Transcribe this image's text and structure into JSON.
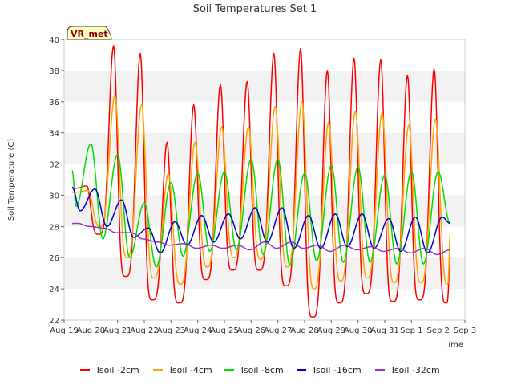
{
  "chart_data": {
    "type": "line",
    "title": "Soil Temperatures Set 1",
    "xlabel": "Time",
    "ylabel": "Soil Temperature (C)",
    "badge": "VR_met",
    "ylim": [
      22,
      40
    ],
    "y_ticks": [
      22,
      24,
      26,
      28,
      30,
      32,
      34,
      36,
      38,
      40
    ],
    "x_ticks": [
      "Aug 19",
      "Aug 20",
      "Aug 21",
      "Aug 22",
      "Aug 23",
      "Aug 24",
      "Aug 25",
      "Aug 26",
      "Aug 27",
      "Aug 28",
      "Aug 29",
      "Aug 30",
      "Aug 31",
      "Sep 1",
      "Sep 2",
      "Sep 3"
    ],
    "xlim_days": [
      0,
      15
    ],
    "x_start_day": 0.3,
    "x_end_day": 14.45,
    "grid": "horizontal bands",
    "legend_position": "bottom",
    "series": [
      {
        "name": "Tsoil -2cm",
        "color": "#ff0000",
        "peak_day_offset": 0.85,
        "daily_max": [
          30.6,
          39.6,
          39.1,
          33.4,
          35.8,
          37.1,
          37.3,
          39.1,
          39.4,
          38.0,
          38.8,
          38.7,
          37.7,
          38.1,
          38.3
        ],
        "daily_min": [
          27.5,
          24.8,
          23.3,
          23.1,
          24.6,
          25.2,
          25.2,
          24.2,
          22.2,
          23.1,
          23.7,
          23.2,
          23.3,
          23.1,
          26.0
        ],
        "end_value": 26.0
      },
      {
        "name": "Tsoil -4cm",
        "color": "#ffa500",
        "peak_day_offset": 0.9,
        "daily_max": [
          30.3,
          36.4,
          35.8,
          31.4,
          33.4,
          34.4,
          34.4,
          35.7,
          36.0,
          34.7,
          35.4,
          35.3,
          34.5,
          34.9,
          34.9
        ],
        "daily_min": [
          28.0,
          26.0,
          24.7,
          24.3,
          25.4,
          26.0,
          25.9,
          25.4,
          24.0,
          24.5,
          24.7,
          24.4,
          24.4,
          24.3,
          27.5
        ],
        "end_value": 27.5
      },
      {
        "name": "Tsoil -8cm",
        "color": "#00dd00",
        "peak_day_offset": 0.0,
        "daily_max": [
          31.7,
          33.3,
          32.6,
          29.5,
          30.8,
          31.4,
          31.5,
          32.3,
          32.3,
          31.4,
          31.9,
          31.8,
          31.3,
          31.5,
          31.5
        ],
        "daily_min": [
          29.3,
          27.2,
          26.0,
          25.4,
          26.1,
          26.4,
          26.5,
          26.2,
          25.5,
          25.8,
          25.7,
          25.7,
          25.6,
          25.6,
          28.2
        ],
        "end_value": 28.2
      },
      {
        "name": "Tsoil -16cm",
        "color": "#0000cc",
        "peak_day_offset": 0.15,
        "daily_max": [
          30.6,
          30.4,
          29.7,
          27.9,
          28.3,
          28.7,
          28.8,
          29.2,
          29.2,
          28.7,
          28.8,
          28.8,
          28.5,
          28.6,
          28.6
        ],
        "daily_min": [
          29.0,
          28.0,
          27.3,
          26.3,
          26.8,
          27.0,
          27.2,
          27.0,
          26.6,
          26.6,
          26.7,
          26.6,
          26.4,
          26.3,
          28.2
        ],
        "end_value": 28.2
      },
      {
        "name": "Tsoil -32cm",
        "color": "#9933cc",
        "peak_day_offset": 0.5,
        "daily_max": [
          28.2,
          27.9,
          27.6,
          27.0,
          26.9,
          26.8,
          26.8,
          27.0,
          27.0,
          26.8,
          26.8,
          26.7,
          26.6,
          26.6,
          26.6
        ],
        "daily_min": [
          28.0,
          27.6,
          27.2,
          26.8,
          26.6,
          26.6,
          26.5,
          26.6,
          26.6,
          26.4,
          26.5,
          26.4,
          26.3,
          26.2,
          26.5
        ],
        "end_value": 26.5
      }
    ]
  }
}
